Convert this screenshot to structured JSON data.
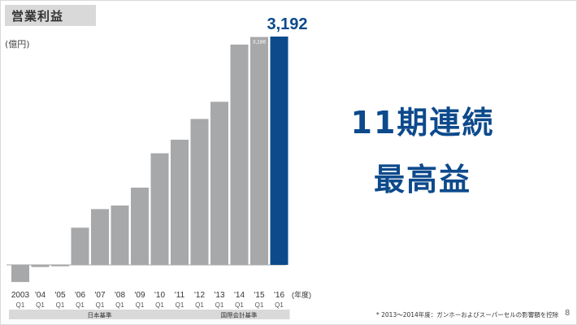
{
  "slide": {
    "title": "営業利益",
    "unit": "(億円)",
    "headline_line1": "11期連続",
    "headline_line2": "最高益",
    "footnote": "* 2013～2014年度：ガンホーおよびスーパーセルの影響額を控除",
    "page_number": "8"
  },
  "chart_data": {
    "type": "bar",
    "title": "営業利益",
    "ylabel": "(億円)",
    "xlabel": "(年度)",
    "categories": [
      {
        "year": "2003",
        "quarter": "Q1"
      },
      {
        "year": "'04",
        "quarter": "Q1"
      },
      {
        "year": "'05",
        "quarter": "Q1"
      },
      {
        "year": "'06",
        "quarter": "Q1"
      },
      {
        "year": "'07",
        "quarter": "Q1"
      },
      {
        "year": "'08",
        "quarter": "Q1"
      },
      {
        "year": "'09",
        "quarter": "Q1"
      },
      {
        "year": "'10",
        "quarter": "Q1"
      },
      {
        "year": "'11",
        "quarter": "Q1"
      },
      {
        "year": "'12",
        "quarter": "Q1"
      },
      {
        "year": "'13",
        "quarter": "Q1"
      },
      {
        "year": "'14",
        "quarter": "Q1"
      },
      {
        "year": "'15",
        "quarter": "Q1"
      },
      {
        "year": "'16",
        "quarter": "Q1"
      }
    ],
    "values": [
      -240,
      -30,
      -20,
      520,
      780,
      830,
      1080,
      1560,
      1750,
      2040,
      2280,
      3080,
      3186,
      3192
    ],
    "highlight_index": 13,
    "bar_color": "#a6a8a9",
    "highlight_color": "#0d4a8c",
    "value_labels": [
      {
        "index": 12,
        "text": "3,186"
      },
      {
        "index": 13,
        "text": "3,192"
      }
    ],
    "groups": [
      {
        "label": "日本基準",
        "from": 0,
        "to": 8
      },
      {
        "label": "国際会計基準",
        "from": 9,
        "to": 13
      }
    ],
    "ylim": [
      -300,
      3300
    ],
    "grid": false
  }
}
